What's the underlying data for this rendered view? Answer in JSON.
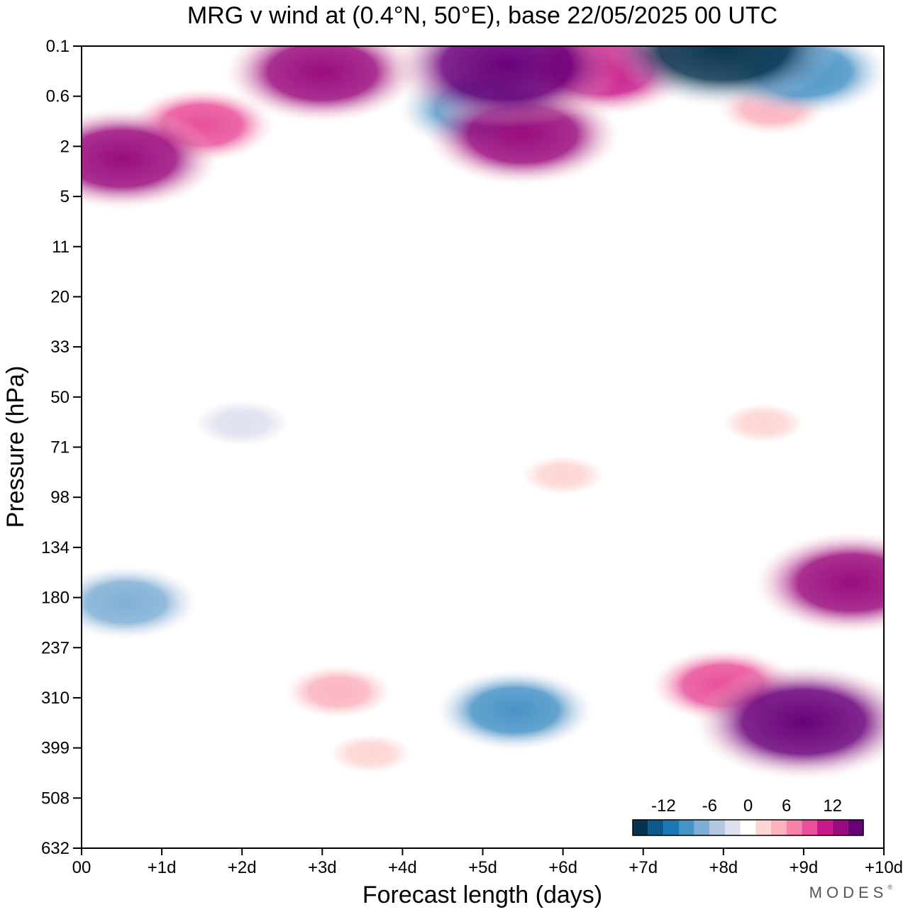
{
  "chart_data": {
    "type": "heatmap",
    "title": "MRG v wind at (0.4°N, 50°E),  base 22/05/2025  00 UTC",
    "xlabel": "Forecast length (days)",
    "ylabel": "Pressure (hPa)",
    "x_ticks": [
      "00",
      "+1d",
      "+2d",
      "+3d",
      "+4d",
      "+5d",
      "+6d",
      "+7d",
      "+8d",
      "+9d",
      "+10d"
    ],
    "xlim": [
      0,
      10
    ],
    "y_ticks": [
      "0.1",
      "0.6",
      "2",
      "5",
      "11",
      "20",
      "33",
      "50",
      "71",
      "98",
      "134",
      "180",
      "237",
      "310",
      "399",
      "508",
      "632"
    ],
    "y_order": "top-to-bottom",
    "colorbar": {
      "labels": [
        "-12",
        "-6",
        "0",
        "6",
        "12"
      ],
      "bounds": [
        -16,
        -14,
        -12,
        -10,
        -8,
        -6,
        -4,
        -2,
        2,
        4,
        6,
        8,
        10,
        12,
        14,
        16
      ],
      "colors": [
        "#08334e",
        "#0c5a8c",
        "#1a78b4",
        "#4893c6",
        "#7fafd5",
        "#b1c7e2",
        "#dfe0ef",
        "#ffffff",
        "#fdd5d3",
        "#fbb3bf",
        "#f682a8",
        "#e94f9a",
        "#c8198a",
        "#9a0c7e",
        "#6a017a"
      ]
    },
    "features": [
      {
        "x": 9.0,
        "p": 350,
        "value": 14
      },
      {
        "x": 9.6,
        "p": 165,
        "value": 12
      },
      {
        "x": 8.0,
        "p": 290,
        "value": 8
      },
      {
        "x": 5.4,
        "p": 330,
        "value": -9
      },
      {
        "x": 0.55,
        "p": 185,
        "value": -8
      },
      {
        "x": 3.2,
        "p": 300,
        "value": 5
      },
      {
        "x": 3.6,
        "p": 410,
        "value": 3
      },
      {
        "x": 2.0,
        "p": 60,
        "value": -4
      },
      {
        "x": 6.0,
        "p": 85,
        "value": 3
      },
      {
        "x": 8.5,
        "p": 60,
        "value": 3
      },
      {
        "x": 5.3,
        "p": 0.2,
        "value": 15
      },
      {
        "x": 3.0,
        "p": 0.25,
        "value": 12
      },
      {
        "x": 6.5,
        "p": 0.22,
        "value": 11
      },
      {
        "x": 8.0,
        "p": 0.1,
        "value": -15
      },
      {
        "x": 9.0,
        "p": 0.25,
        "value": -10
      },
      {
        "x": 5.0,
        "p": 0.8,
        "value": -10
      },
      {
        "x": 5.5,
        "p": 1.5,
        "value": 12
      },
      {
        "x": 0.5,
        "p": 2.5,
        "value": 12
      },
      {
        "x": 1.5,
        "p": 1.2,
        "value": 8
      },
      {
        "x": 8.6,
        "p": 0.8,
        "value": 5
      }
    ]
  },
  "logo": {
    "text": "MODES",
    "mark": "®"
  }
}
